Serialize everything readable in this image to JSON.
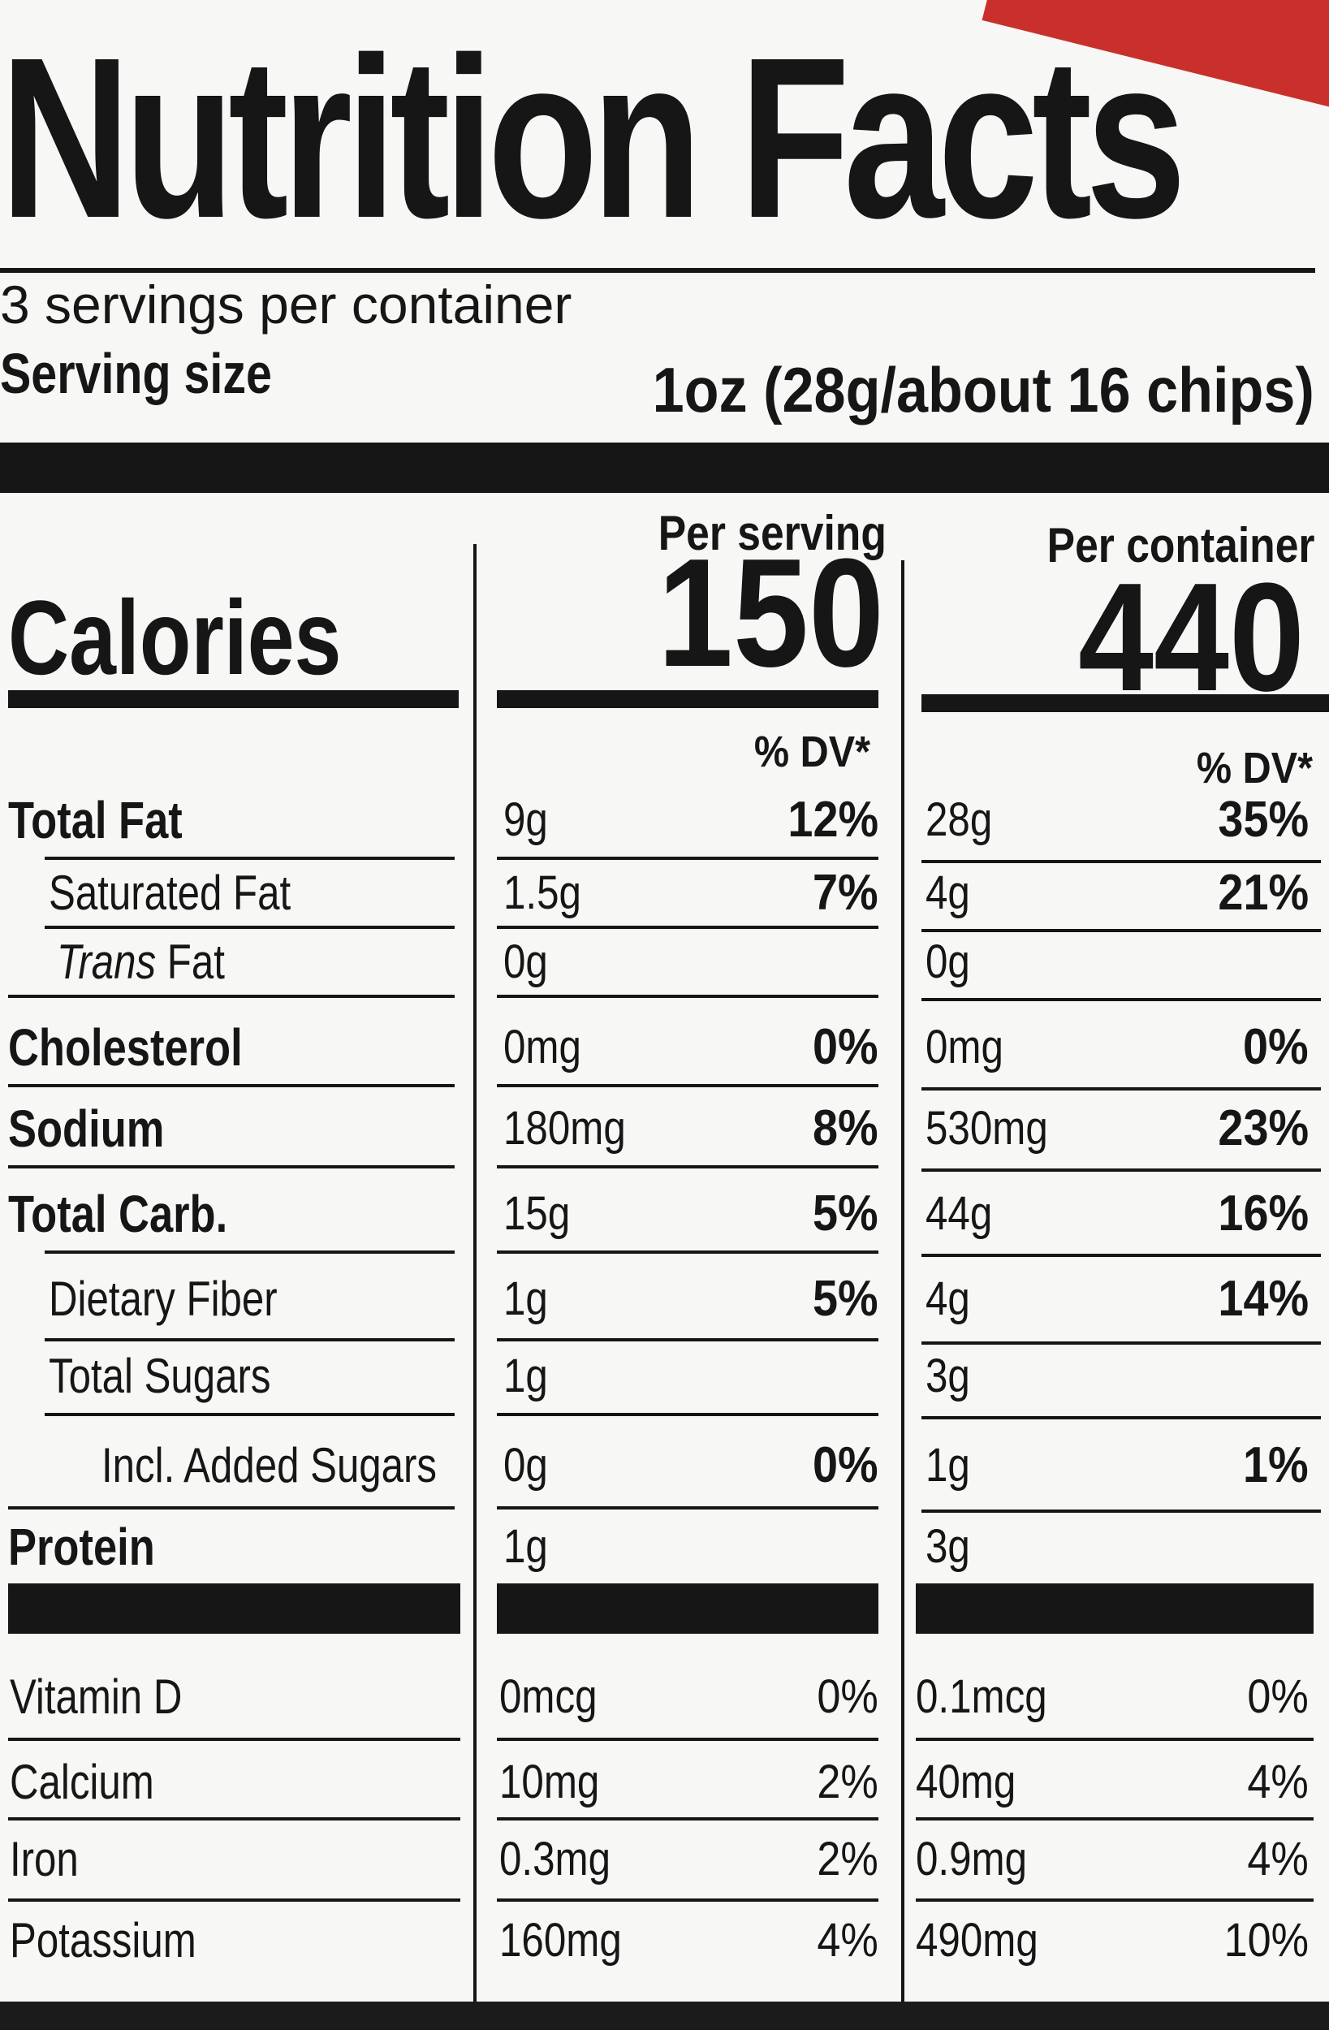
{
  "label": {
    "title": "Nutrition Facts",
    "servings_per_container": "3 servings per container",
    "serving_size_label": "Serving size",
    "serving_size_value": "1oz (28g/about 16 chips)",
    "per_serving_header": "Per serving",
    "per_container_header": "Per container",
    "calories_label": "Calories",
    "calories_per_serving": "150",
    "calories_per_container": "440",
    "dv_header": "% DV*"
  },
  "nutrients": [
    {
      "name": "Total Fat",
      "bold": true,
      "indent": 0,
      "serving": "9g",
      "serving_dv": "12%",
      "container": "28g",
      "container_dv": "35%"
    },
    {
      "name": "Saturated Fat",
      "bold": false,
      "indent": 1,
      "serving": "1.5g",
      "serving_dv": "7%",
      "container": "4g",
      "container_dv": "21%"
    },
    {
      "name_italic": "Trans",
      "name": " Fat",
      "bold": false,
      "indent": 2,
      "serving": "0g",
      "serving_dv": "",
      "container": "0g",
      "container_dv": ""
    },
    {
      "name": "Cholesterol",
      "bold": true,
      "indent": 0,
      "serving": "0mg",
      "serving_dv": "0%",
      "container": "0mg",
      "container_dv": "0%"
    },
    {
      "name": "Sodium",
      "bold": true,
      "indent": 0,
      "serving": "180mg",
      "serving_dv": "8%",
      "container": "530mg",
      "container_dv": "23%"
    },
    {
      "name": "Total Carb.",
      "bold": true,
      "indent": 0,
      "serving": "15g",
      "serving_dv": "5%",
      "container": "44g",
      "container_dv": "16%"
    },
    {
      "name": "Dietary Fiber",
      "bold": false,
      "indent": 1,
      "serving": "1g",
      "serving_dv": "5%",
      "container": "4g",
      "container_dv": "14%"
    },
    {
      "name": "Total Sugars",
      "bold": false,
      "indent": 1,
      "serving": "1g",
      "serving_dv": "",
      "container": "3g",
      "container_dv": ""
    },
    {
      "name": "Incl. Added Sugars",
      "bold": false,
      "indent": 3,
      "serving": "0g",
      "serving_dv": "0%",
      "container": "1g",
      "container_dv": "1%"
    },
    {
      "name": "Protein",
      "bold": true,
      "indent": 0,
      "serving": "1g",
      "serving_dv": "",
      "container": "3g",
      "container_dv": ""
    }
  ],
  "vitamins": [
    {
      "name": "Vitamin D",
      "serving": "0mcg",
      "serving_dv": "0%",
      "container": "0.1mcg",
      "container_dv": "0%"
    },
    {
      "name": "Calcium",
      "serving": "10mg",
      "serving_dv": "2%",
      "container": "40mg",
      "container_dv": "4%"
    },
    {
      "name": "Iron",
      "serving": "0.3mg",
      "serving_dv": "2%",
      "container": "0.9mg",
      "container_dv": "4%"
    },
    {
      "name": "Potassium",
      "serving": "160mg",
      "serving_dv": "4%",
      "container": "490mg",
      "container_dv": "10%"
    }
  ]
}
